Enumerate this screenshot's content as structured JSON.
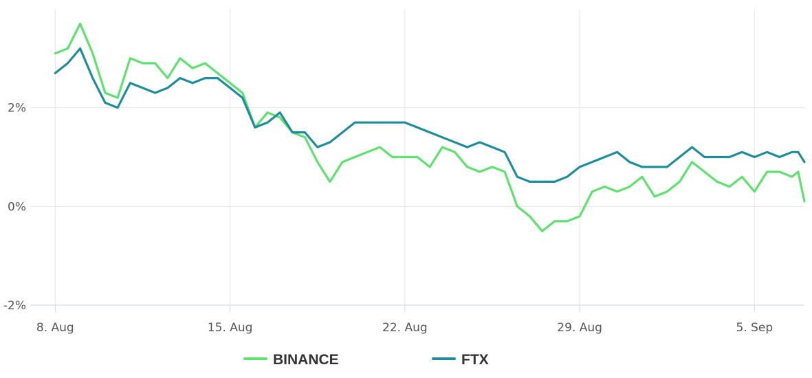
{
  "chart_data": {
    "type": "line",
    "title": "",
    "xlabel": "",
    "ylabel": "",
    "x_range": [
      "2022-08-07",
      "2022-09-07"
    ],
    "ylim": [
      -2,
      4
    ],
    "y_tick_values": [
      -2,
      0,
      2
    ],
    "y_tick_labels": [
      "-2%",
      "0%",
      "2%"
    ],
    "x_ticks": [
      {
        "date": "2022-08-08",
        "label": "8. Aug"
      },
      {
        "date": "2022-08-15",
        "label": "15. Aug"
      },
      {
        "date": "2022-08-22",
        "label": "22. Aug"
      },
      {
        "date": "2022-08-29",
        "label": "29. Aug"
      },
      {
        "date": "2022-09-05",
        "label": "5. Sep"
      }
    ],
    "grid": true,
    "legend_position": "bottom-center",
    "series": [
      {
        "name": "BINANCE",
        "color": "#5ee16f",
        "x": [
          "2022-08-08",
          "2022-08-08T12:00",
          "2022-08-09",
          "2022-08-09T12:00",
          "2022-08-10",
          "2022-08-10T12:00",
          "2022-08-11",
          "2022-08-11T12:00",
          "2022-08-12",
          "2022-08-12T12:00",
          "2022-08-13",
          "2022-08-13T12:00",
          "2022-08-14",
          "2022-08-14T12:00",
          "2022-08-15",
          "2022-08-15T12:00",
          "2022-08-16",
          "2022-08-16T12:00",
          "2022-08-17",
          "2022-08-17T12:00",
          "2022-08-18",
          "2022-08-18T12:00",
          "2022-08-19",
          "2022-08-19T12:00",
          "2022-08-20",
          "2022-08-20T12:00",
          "2022-08-21",
          "2022-08-21T12:00",
          "2022-08-22",
          "2022-08-22T12:00",
          "2022-08-23",
          "2022-08-23T12:00",
          "2022-08-24",
          "2022-08-24T12:00",
          "2022-08-25",
          "2022-08-25T12:00",
          "2022-08-26",
          "2022-08-26T12:00",
          "2022-08-27",
          "2022-08-27T12:00",
          "2022-08-28",
          "2022-08-28T12:00",
          "2022-08-29",
          "2022-08-29T12:00",
          "2022-08-30",
          "2022-08-30T12:00",
          "2022-08-31",
          "2022-08-31T12:00",
          "2022-09-01",
          "2022-09-01T12:00",
          "2022-09-02",
          "2022-09-02T12:00",
          "2022-09-03",
          "2022-09-03T12:00",
          "2022-09-04",
          "2022-09-04T12:00",
          "2022-09-05",
          "2022-09-05T12:00",
          "2022-09-06",
          "2022-09-06T12:00",
          "2022-09-06T18:00",
          "2022-09-07"
        ],
        "values": [
          3.1,
          3.2,
          3.7,
          3.1,
          2.3,
          2.2,
          3.0,
          2.9,
          2.9,
          2.6,
          3.0,
          2.8,
          2.9,
          2.7,
          2.5,
          2.3,
          1.6,
          1.9,
          1.8,
          1.5,
          1.4,
          0.9,
          0.5,
          0.9,
          1.0,
          1.1,
          1.2,
          1.0,
          1.0,
          1.0,
          0.8,
          1.2,
          1.1,
          0.8,
          0.7,
          0.8,
          0.7,
          0.0,
          -0.2,
          -0.5,
          -0.3,
          -0.3,
          -0.2,
          0.3,
          0.4,
          0.3,
          0.4,
          0.6,
          0.2,
          0.3,
          0.5,
          0.9,
          0.7,
          0.5,
          0.4,
          0.6,
          0.3,
          0.7,
          0.7,
          0.6,
          0.7,
          0.1
        ]
      },
      {
        "name": "FTX",
        "color": "#1e8c9b",
        "x": [
          "2022-08-08",
          "2022-08-08T12:00",
          "2022-08-09",
          "2022-08-09T12:00",
          "2022-08-10",
          "2022-08-10T12:00",
          "2022-08-11",
          "2022-08-11T12:00",
          "2022-08-12",
          "2022-08-12T12:00",
          "2022-08-13",
          "2022-08-13T12:00",
          "2022-08-14",
          "2022-08-14T12:00",
          "2022-08-15",
          "2022-08-15T12:00",
          "2022-08-16",
          "2022-08-16T12:00",
          "2022-08-17",
          "2022-08-17T12:00",
          "2022-08-18",
          "2022-08-18T12:00",
          "2022-08-19",
          "2022-08-19T12:00",
          "2022-08-20",
          "2022-08-20T12:00",
          "2022-08-21",
          "2022-08-21T12:00",
          "2022-08-22",
          "2022-08-22T12:00",
          "2022-08-23",
          "2022-08-23T12:00",
          "2022-08-24",
          "2022-08-24T12:00",
          "2022-08-25",
          "2022-08-25T12:00",
          "2022-08-26",
          "2022-08-26T12:00",
          "2022-08-27",
          "2022-08-27T12:00",
          "2022-08-28",
          "2022-08-28T12:00",
          "2022-08-29",
          "2022-08-29T12:00",
          "2022-08-30",
          "2022-08-30T12:00",
          "2022-08-31",
          "2022-08-31T12:00",
          "2022-09-01",
          "2022-09-01T12:00",
          "2022-09-02",
          "2022-09-02T12:00",
          "2022-09-03",
          "2022-09-03T12:00",
          "2022-09-04",
          "2022-09-04T12:00",
          "2022-09-05",
          "2022-09-05T12:00",
          "2022-09-06",
          "2022-09-06T12:00",
          "2022-09-06T18:00",
          "2022-09-07"
        ],
        "values": [
          2.7,
          2.9,
          3.2,
          2.6,
          2.1,
          2.0,
          2.5,
          2.4,
          2.3,
          2.4,
          2.6,
          2.5,
          2.6,
          2.6,
          2.4,
          2.2,
          1.6,
          1.7,
          1.9,
          1.5,
          1.5,
          1.2,
          1.3,
          1.5,
          1.7,
          1.7,
          1.7,
          1.7,
          1.7,
          1.6,
          1.5,
          1.4,
          1.3,
          1.2,
          1.3,
          1.2,
          1.1,
          0.6,
          0.5,
          0.5,
          0.5,
          0.6,
          0.8,
          0.9,
          1.0,
          1.1,
          0.9,
          0.8,
          0.8,
          0.8,
          1.0,
          1.2,
          1.0,
          1.0,
          1.0,
          1.1,
          1.0,
          1.1,
          1.0,
          1.1,
          1.1,
          0.9
        ]
      }
    ]
  }
}
